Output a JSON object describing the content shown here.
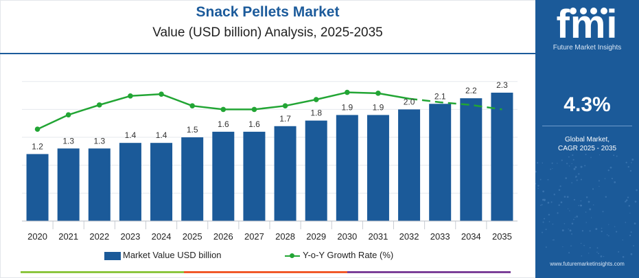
{
  "header": {
    "title": "Snack Pellets Market",
    "subtitle": "Value (USD billion) Analysis, 2025-2035"
  },
  "chart_data": {
    "type": "bar",
    "categories": [
      "2020",
      "2021",
      "2022",
      "2023",
      "2024",
      "2025",
      "2026",
      "2027",
      "2028",
      "2029",
      "2030",
      "2031",
      "2032",
      "2033",
      "2034",
      "2035"
    ],
    "series": [
      {
        "name": "Market Value USD billion",
        "type": "bar",
        "values": [
          1.2,
          1.3,
          1.3,
          1.4,
          1.4,
          1.5,
          1.6,
          1.6,
          1.7,
          1.8,
          1.9,
          1.9,
          2.0,
          2.1,
          2.2,
          2.3
        ],
        "labels": [
          "1.2",
          "1.3",
          "1.3",
          "1.4",
          "1.4",
          "1.5",
          "1.6",
          "1.6",
          "1.7",
          "1.8",
          "1.9",
          "1.9",
          "2.0",
          "2.1",
          "2.2",
          "2.3"
        ]
      },
      {
        "name": "Y-o-Y Growth Rate (%)",
        "type": "line",
        "values": [
          2.9,
          4.5,
          5.6,
          6.6,
          6.8,
          5.5,
          5.1,
          5.1,
          5.5,
          6.2,
          7.0,
          6.9,
          6.3,
          5.9,
          5.6,
          5.1
        ],
        "style_from_index": 12,
        "style_after": "dashed"
      }
    ],
    "ylim": [
      0,
      2.5
    ],
    "grid": true,
    "legend_position": "bottom"
  },
  "side_panel": {
    "logo_text": "fmi",
    "logo_subtitle": "Future Market Insights",
    "cagr_value": "4.3%",
    "cagr_label_line1": "Global Market,",
    "cagr_label_line2": "CAGR 2025 - 2035",
    "website": "www.futuremarketinsights.com"
  },
  "colors": {
    "bar": "#1b5a99",
    "line": "#22a534",
    "title": "#1c5b9b",
    "panel": "#1b5a99",
    "strip": [
      "#8cc63f",
      "#f15a29",
      "#7b3f98",
      "#1b5a99"
    ]
  }
}
